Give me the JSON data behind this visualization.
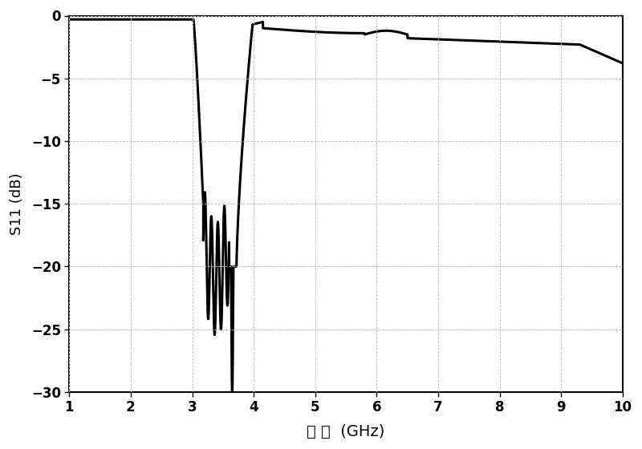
{
  "title": "",
  "xlabel": "频 率  (GHz)",
  "ylabel": "S11 (dB)",
  "xlim": [
    1,
    10
  ],
  "ylim": [
    -30,
    0
  ],
  "xticks": [
    1,
    2,
    3,
    4,
    5,
    6,
    7,
    8,
    9,
    10
  ],
  "yticks": [
    0,
    -5,
    -10,
    -15,
    -20,
    -25,
    -30
  ],
  "line_color": "#000000",
  "line_width": 2.2,
  "background_color": "#ffffff",
  "grid_color": "#bbbbbb"
}
